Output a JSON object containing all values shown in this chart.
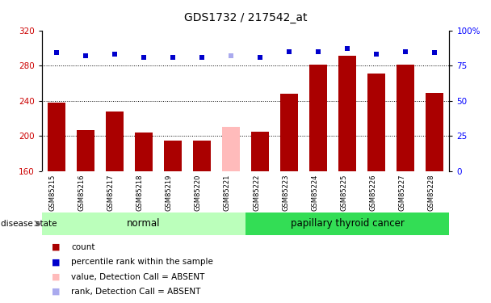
{
  "title": "GDS1732 / 217542_at",
  "samples": [
    "GSM85215",
    "GSM85216",
    "GSM85217",
    "GSM85218",
    "GSM85219",
    "GSM85220",
    "GSM85221",
    "GSM85222",
    "GSM85223",
    "GSM85224",
    "GSM85225",
    "GSM85226",
    "GSM85227",
    "GSM85228"
  ],
  "count_values": [
    238,
    207,
    228,
    204,
    195,
    195,
    null,
    205,
    248,
    281,
    291,
    271,
    281,
    249
  ],
  "count_absent": [
    null,
    null,
    null,
    null,
    null,
    null,
    210,
    null,
    null,
    null,
    null,
    null,
    null,
    null
  ],
  "rank_values": [
    84,
    82,
    83,
    81,
    81,
    81,
    null,
    81,
    85,
    85,
    87,
    83,
    85,
    84
  ],
  "rank_absent": [
    null,
    null,
    null,
    null,
    null,
    null,
    82,
    null,
    null,
    null,
    null,
    null,
    null,
    null
  ],
  "ylim_left": [
    160,
    320
  ],
  "ylim_right": [
    0,
    100
  ],
  "yticks_left": [
    160,
    200,
    240,
    280,
    320
  ],
  "yticks_right": [
    0,
    25,
    50,
    75,
    100
  ],
  "grid_values": [
    200,
    240,
    280
  ],
  "bar_color_present": "#aa0000",
  "bar_color_absent": "#ffbbbb",
  "rank_color_present": "#0000cc",
  "rank_color_absent": "#aaaaee",
  "tick_area_bg": "#cccccc",
  "normal_color": "#bbffbb",
  "cancer_color": "#33dd55",
  "fig_width": 6.08,
  "fig_height": 3.75,
  "legend_items": [
    {
      "label": "count",
      "color": "#aa0000"
    },
    {
      "label": "percentile rank within the sample",
      "color": "#0000cc"
    },
    {
      "label": "value, Detection Call = ABSENT",
      "color": "#ffbbbb"
    },
    {
      "label": "rank, Detection Call = ABSENT",
      "color": "#aaaaee"
    }
  ]
}
